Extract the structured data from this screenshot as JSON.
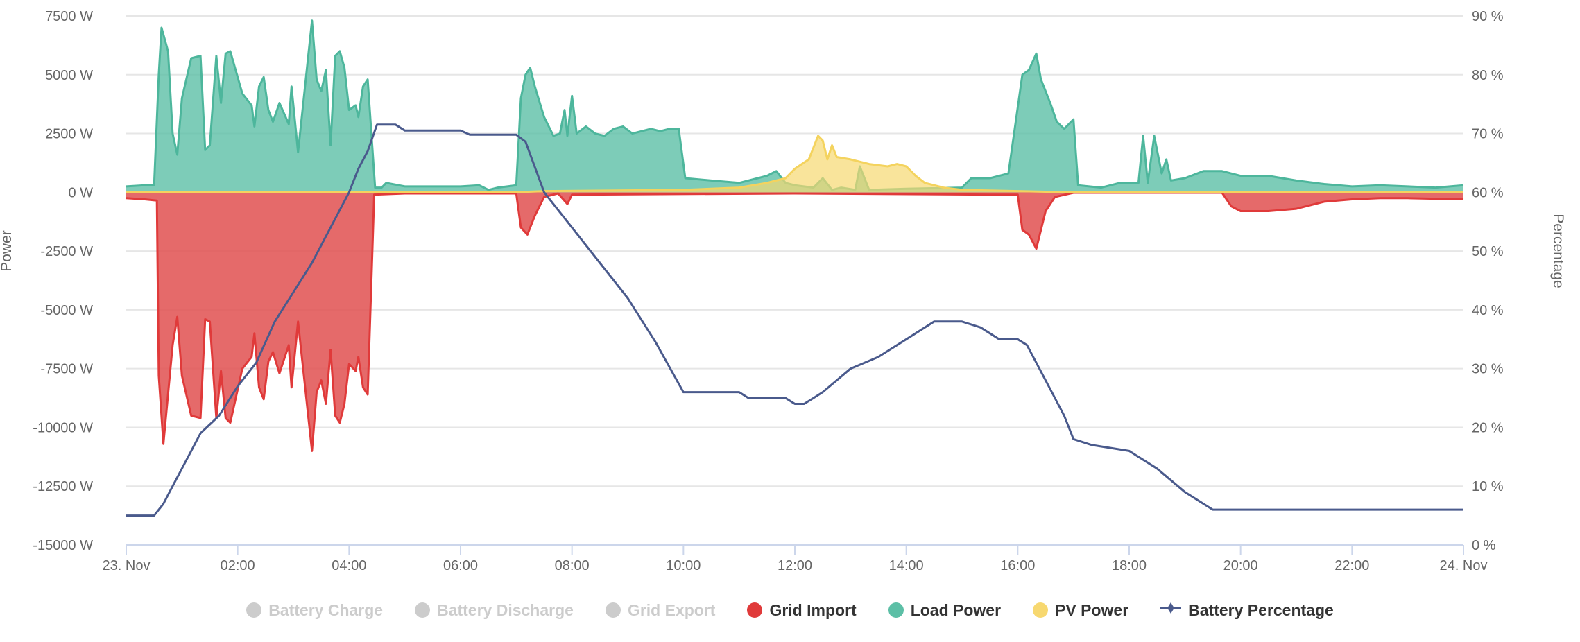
{
  "chart_data": {
    "type": "area",
    "title": "",
    "x_ticks": [
      "23. Nov",
      "02:00",
      "04:00",
      "06:00",
      "08:00",
      "10:00",
      "12:00",
      "14:00",
      "16:00",
      "18:00",
      "20:00",
      "22:00",
      "24. Nov"
    ],
    "y_left": {
      "label": "Power",
      "unit": "W",
      "range": [
        -15000,
        7500
      ],
      "ticks": [
        "7500 W",
        "5000 W",
        "2500 W",
        "0 W",
        "-2500 W",
        "-5000 W",
        "-7500 W",
        "-10000 W",
        "-12500 W",
        "-15000 W"
      ]
    },
    "y_right": {
      "label": "Percentage",
      "unit": "%",
      "range": [
        0,
        90
      ],
      "ticks": [
        "90 %",
        "80 %",
        "70 %",
        "60 %",
        "50 %",
        "40 %",
        "30 %",
        "20 %",
        "10 %",
        "0 %"
      ]
    },
    "grid": true,
    "legend_placement": "bottom",
    "legend": [
      {
        "name": "Battery Charge",
        "visible": false,
        "color": "#cccccc"
      },
      {
        "name": "Battery Discharge",
        "visible": false,
        "color": "#cccccc"
      },
      {
        "name": "Grid Export",
        "visible": false,
        "color": "#cccccc"
      },
      {
        "name": "Grid Import",
        "visible": true,
        "color": "#e03a3a"
      },
      {
        "name": "Load Power",
        "visible": true,
        "color": "#5cbfa6"
      },
      {
        "name": "PV Power",
        "visible": true,
        "color": "#f7d870"
      },
      {
        "name": "Battery Percentage",
        "visible": true,
        "color": "#4a5a8c"
      }
    ],
    "series": [
      {
        "name": "Grid Import",
        "axis": "left",
        "points": [
          [
            "00:00",
            -250
          ],
          [
            "00:20",
            -300
          ],
          [
            "00:33",
            -350
          ],
          [
            "00:35",
            -7800
          ],
          [
            "00:40",
            -10700
          ],
          [
            "00:50",
            -6500
          ],
          [
            "00:55",
            -5300
          ],
          [
            "01:00",
            -7800
          ],
          [
            "01:10",
            -9500
          ],
          [
            "01:20",
            -9600
          ],
          [
            "01:25",
            -5400
          ],
          [
            "01:30",
            -5500
          ],
          [
            "01:37",
            -9600
          ],
          [
            "01:42",
            -7600
          ],
          [
            "01:47",
            -9600
          ],
          [
            "01:52",
            -9800
          ],
          [
            "02:05",
            -7500
          ],
          [
            "02:15",
            -7000
          ],
          [
            "02:18",
            -6000
          ],
          [
            "02:23",
            -8300
          ],
          [
            "02:28",
            -8800
          ],
          [
            "02:33",
            -7200
          ],
          [
            "02:38",
            -6800
          ],
          [
            "02:45",
            -7700
          ],
          [
            "02:55",
            -6500
          ],
          [
            "02:58",
            -8300
          ],
          [
            "03:05",
            -5500
          ],
          [
            "03:20",
            -11000
          ],
          [
            "03:25",
            -8500
          ],
          [
            "03:30",
            -8000
          ],
          [
            "03:35",
            -9000
          ],
          [
            "03:40",
            -6700
          ],
          [
            "03:45",
            -9500
          ],
          [
            "03:50",
            -9800
          ],
          [
            "03:55",
            -9000
          ],
          [
            "04:00",
            -7300
          ],
          [
            "04:07",
            -7600
          ],
          [
            "04:10",
            -7000
          ],
          [
            "04:15",
            -8300
          ],
          [
            "04:20",
            -8600
          ],
          [
            "04:27",
            -100
          ],
          [
            "05:00",
            -50
          ],
          [
            "07:00",
            -50
          ],
          [
            "07:05",
            -1500
          ],
          [
            "07:12",
            -1800
          ],
          [
            "07:20",
            -1000
          ],
          [
            "07:30",
            -200
          ],
          [
            "07:45",
            -50
          ],
          [
            "07:55",
            -500
          ],
          [
            "08:00",
            -100
          ],
          [
            "12:00",
            -50
          ],
          [
            "15:30",
            -100
          ],
          [
            "16:00",
            -100
          ],
          [
            "16:05",
            -1600
          ],
          [
            "16:12",
            -1800
          ],
          [
            "16:20",
            -2400
          ],
          [
            "16:30",
            -800
          ],
          [
            "16:40",
            -200
          ],
          [
            "17:00",
            -20
          ],
          [
            "19:40",
            -20
          ],
          [
            "19:50",
            -600
          ],
          [
            "20:00",
            -800
          ],
          [
            "20:30",
            -800
          ],
          [
            "21:00",
            -700
          ],
          [
            "21:30",
            -400
          ],
          [
            "22:00",
            -300
          ],
          [
            "22:30",
            -250
          ],
          [
            "23:00",
            -250
          ],
          [
            "24:00",
            -300
          ]
        ]
      },
      {
        "name": "Load Power",
        "axis": "left",
        "points": [
          [
            "00:00",
            250
          ],
          [
            "00:20",
            300
          ],
          [
            "00:30",
            300
          ],
          [
            "00:35",
            5000
          ],
          [
            "00:38",
            7000
          ],
          [
            "00:45",
            6000
          ],
          [
            "00:50",
            2500
          ],
          [
            "00:55",
            1600
          ],
          [
            "01:00",
            4000
          ],
          [
            "01:10",
            5700
          ],
          [
            "01:20",
            5800
          ],
          [
            "01:25",
            1800
          ],
          [
            "01:30",
            2000
          ],
          [
            "01:37",
            5800
          ],
          [
            "01:42",
            3800
          ],
          [
            "01:47",
            5900
          ],
          [
            "01:52",
            6000
          ],
          [
            "02:05",
            4200
          ],
          [
            "02:15",
            3700
          ],
          [
            "02:18",
            2800
          ],
          [
            "02:23",
            4500
          ],
          [
            "02:28",
            4900
          ],
          [
            "02:33",
            3500
          ],
          [
            "02:38",
            3000
          ],
          [
            "02:45",
            3800
          ],
          [
            "02:55",
            2900
          ],
          [
            "02:58",
            4500
          ],
          [
            "03:05",
            1700
          ],
          [
            "03:20",
            7300
          ],
          [
            "03:25",
            4800
          ],
          [
            "03:30",
            4300
          ],
          [
            "03:35",
            5200
          ],
          [
            "03:40",
            2000
          ],
          [
            "03:45",
            5800
          ],
          [
            "03:50",
            6000
          ],
          [
            "03:55",
            5300
          ],
          [
            "04:00",
            3500
          ],
          [
            "04:07",
            3700
          ],
          [
            "04:10",
            3200
          ],
          [
            "04:15",
            4500
          ],
          [
            "04:20",
            4800
          ],
          [
            "04:28",
            200
          ],
          [
            "04:35",
            200
          ],
          [
            "04:40",
            400
          ],
          [
            "05:00",
            250
          ],
          [
            "06:00",
            250
          ],
          [
            "06:20",
            300
          ],
          [
            "06:30",
            100
          ],
          [
            "06:40",
            200
          ],
          [
            "07:00",
            300
          ],
          [
            "07:05",
            4000
          ],
          [
            "07:10",
            5000
          ],
          [
            "07:15",
            5300
          ],
          [
            "07:20",
            4500
          ],
          [
            "07:30",
            3200
          ],
          [
            "07:40",
            2400
          ],
          [
            "07:47",
            2500
          ],
          [
            "07:52",
            3500
          ],
          [
            "07:55",
            2400
          ],
          [
            "08:00",
            4100
          ],
          [
            "08:05",
            2500
          ],
          [
            "08:15",
            2800
          ],
          [
            "08:25",
            2500
          ],
          [
            "08:35",
            2400
          ],
          [
            "08:45",
            2700
          ],
          [
            "08:55",
            2800
          ],
          [
            "09:05",
            2500
          ],
          [
            "09:15",
            2600
          ],
          [
            "09:25",
            2700
          ],
          [
            "09:35",
            2600
          ],
          [
            "09:45",
            2700
          ],
          [
            "09:55",
            2700
          ],
          [
            "10:02",
            600
          ],
          [
            "10:30",
            500
          ],
          [
            "11:00",
            400
          ],
          [
            "11:20",
            600
          ],
          [
            "11:30",
            700
          ],
          [
            "11:40",
            900
          ],
          [
            "11:50",
            400
          ],
          [
            "12:00",
            300
          ],
          [
            "12:20",
            200
          ],
          [
            "12:30",
            600
          ],
          [
            "12:40",
            100
          ],
          [
            "12:50",
            200
          ],
          [
            "13:05",
            100
          ],
          [
            "13:10",
            1100
          ],
          [
            "13:20",
            100
          ],
          [
            "14:00",
            150
          ],
          [
            "15:00",
            200
          ],
          [
            "15:10",
            600
          ],
          [
            "15:30",
            600
          ],
          [
            "15:50",
            800
          ],
          [
            "16:05",
            5000
          ],
          [
            "16:12",
            5200
          ],
          [
            "16:20",
            5900
          ],
          [
            "16:25",
            4800
          ],
          [
            "16:35",
            3800
          ],
          [
            "16:42",
            3000
          ],
          [
            "16:50",
            2700
          ],
          [
            "17:00",
            3100
          ],
          [
            "17:05",
            300
          ],
          [
            "17:30",
            200
          ],
          [
            "17:50",
            400
          ],
          [
            "18:10",
            400
          ],
          [
            "18:15",
            2400
          ],
          [
            "18:20",
            400
          ],
          [
            "18:27",
            2400
          ],
          [
            "18:35",
            800
          ],
          [
            "18:40",
            1400
          ],
          [
            "18:45",
            500
          ],
          [
            "19:00",
            600
          ],
          [
            "19:20",
            900
          ],
          [
            "19:40",
            900
          ],
          [
            "20:00",
            700
          ],
          [
            "20:30",
            700
          ],
          [
            "21:00",
            500
          ],
          [
            "21:30",
            350
          ],
          [
            "22:00",
            250
          ],
          [
            "22:30",
            300
          ],
          [
            "23:00",
            250
          ],
          [
            "23:30",
            200
          ],
          [
            "24:00",
            300
          ]
        ]
      },
      {
        "name": "PV Power",
        "axis": "left",
        "points": [
          [
            "00:00",
            0
          ],
          [
            "07:00",
            0
          ],
          [
            "07:30",
            50
          ],
          [
            "10:00",
            100
          ],
          [
            "11:00",
            200
          ],
          [
            "11:30",
            400
          ],
          [
            "11:50",
            600
          ],
          [
            "12:00",
            1000
          ],
          [
            "12:15",
            1400
          ],
          [
            "12:25",
            2400
          ],
          [
            "12:30",
            2200
          ],
          [
            "12:35",
            1400
          ],
          [
            "12:40",
            2000
          ],
          [
            "12:45",
            1500
          ],
          [
            "13:00",
            1400
          ],
          [
            "13:20",
            1200
          ],
          [
            "13:40",
            1100
          ],
          [
            "13:50",
            1200
          ],
          [
            "14:00",
            1100
          ],
          [
            "14:10",
            700
          ],
          [
            "14:20",
            400
          ],
          [
            "14:40",
            200
          ],
          [
            "15:00",
            100
          ],
          [
            "16:00",
            50
          ],
          [
            "17:00",
            0
          ],
          [
            "24:00",
            0
          ]
        ]
      },
      {
        "name": "Battery Percentage",
        "axis": "right",
        "points": [
          [
            "00:00",
            5
          ],
          [
            "00:30",
            5
          ],
          [
            "00:40",
            7
          ],
          [
            "00:50",
            10
          ],
          [
            "01:00",
            13
          ],
          [
            "01:10",
            16
          ],
          [
            "01:20",
            19
          ],
          [
            "01:40",
            22
          ],
          [
            "02:00",
            27
          ],
          [
            "02:20",
            31
          ],
          [
            "02:40",
            38
          ],
          [
            "03:00",
            43
          ],
          [
            "03:20",
            48
          ],
          [
            "03:40",
            54
          ],
          [
            "04:00",
            60
          ],
          [
            "04:10",
            64
          ],
          [
            "04:20",
            67
          ],
          [
            "04:30",
            71.5
          ],
          [
            "04:50",
            71.5
          ],
          [
            "05:00",
            70.5
          ],
          [
            "06:00",
            70.5
          ],
          [
            "06:10",
            69.8
          ],
          [
            "07:00",
            69.8
          ],
          [
            "07:10",
            68.6
          ],
          [
            "07:30",
            60
          ],
          [
            "08:00",
            54
          ],
          [
            "08:30",
            48
          ],
          [
            "09:00",
            42
          ],
          [
            "09:30",
            34.5
          ],
          [
            "10:00",
            26
          ],
          [
            "11:00",
            26
          ],
          [
            "11:10",
            25
          ],
          [
            "11:50",
            25
          ],
          [
            "12:00",
            24
          ],
          [
            "12:10",
            24
          ],
          [
            "12:20",
            25
          ],
          [
            "12:30",
            26
          ],
          [
            "13:00",
            30
          ],
          [
            "13:30",
            32
          ],
          [
            "14:00",
            35
          ],
          [
            "14:20",
            37
          ],
          [
            "14:30",
            38
          ],
          [
            "15:00",
            38
          ],
          [
            "15:20",
            37
          ],
          [
            "15:40",
            35
          ],
          [
            "16:00",
            35
          ],
          [
            "16:10",
            34
          ],
          [
            "16:30",
            28
          ],
          [
            "16:50",
            22
          ],
          [
            "17:00",
            18
          ],
          [
            "17:20",
            17
          ],
          [
            "18:00",
            16
          ],
          [
            "18:30",
            13
          ],
          [
            "19:00",
            9
          ],
          [
            "19:30",
            6
          ],
          [
            "20:00",
            6
          ],
          [
            "24:00",
            6
          ]
        ]
      }
    ]
  }
}
